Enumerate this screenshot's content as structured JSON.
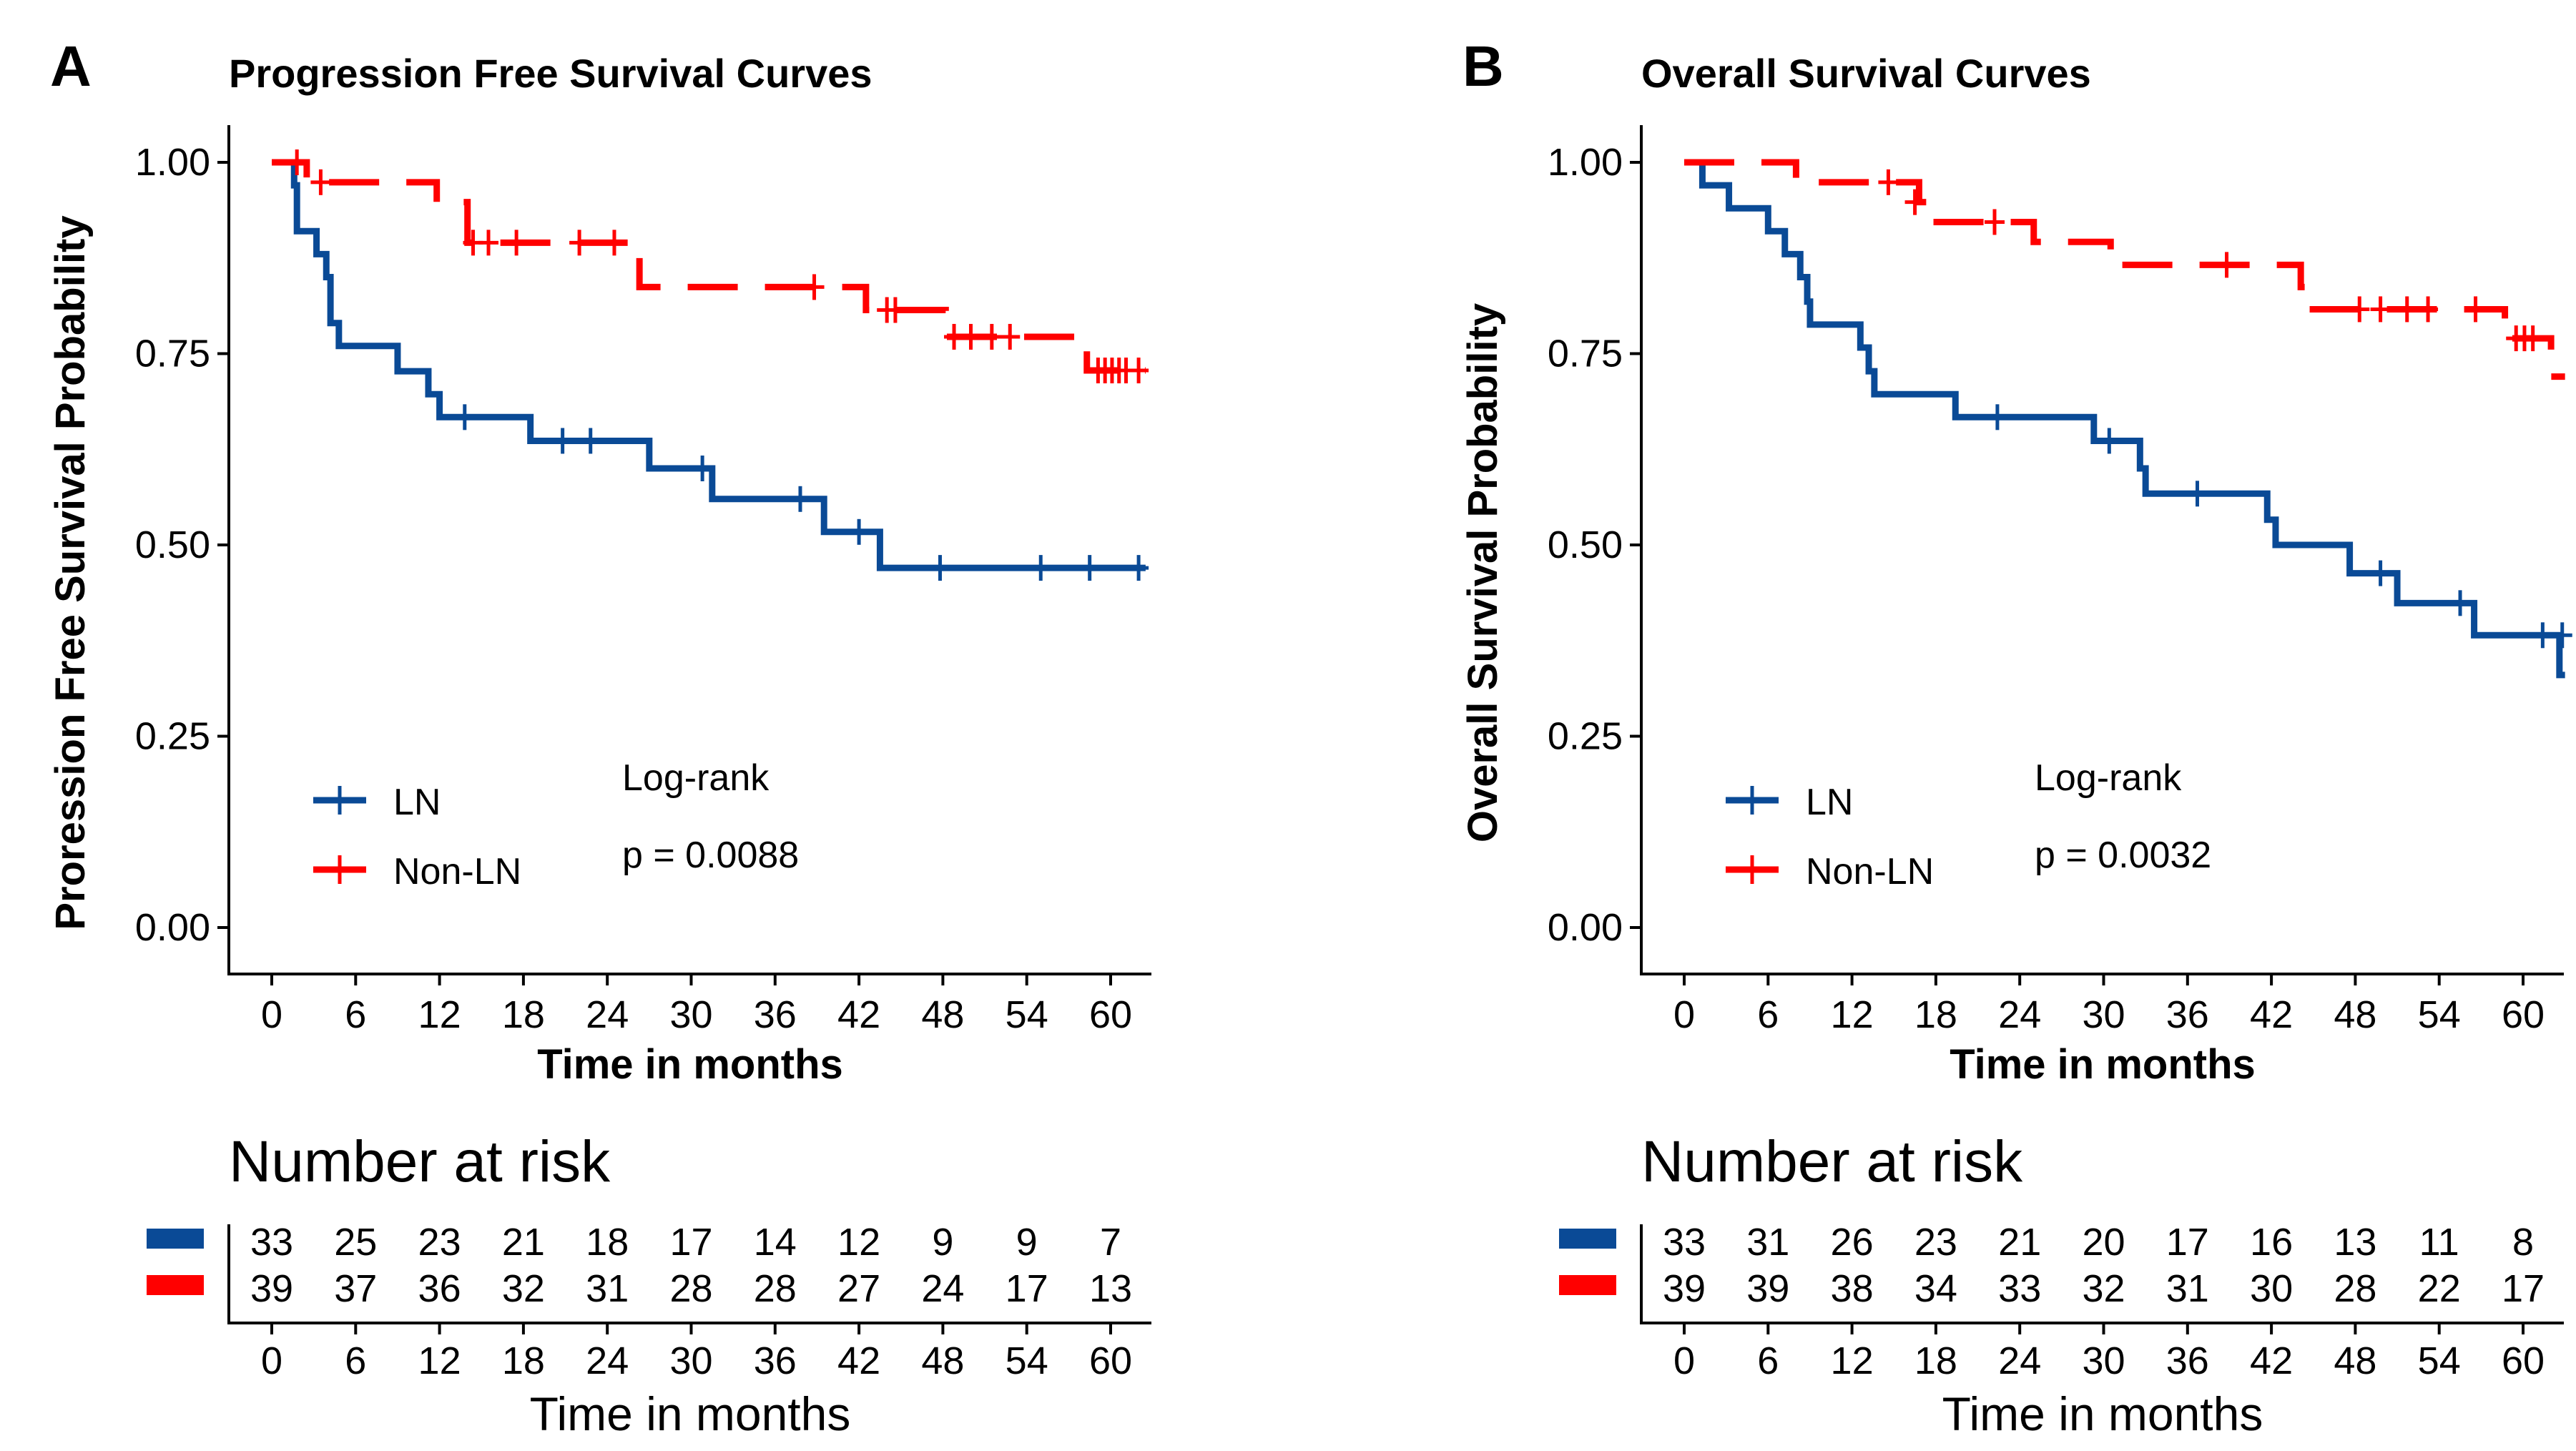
{
  "colors": {
    "ln": "#0a4a96",
    "non_ln": "#ff0000",
    "axis": "#000000"
  },
  "chart_data": [
    {
      "panel_label": "A",
      "type": "line",
      "subtype": "kaplan-meier",
      "title": "Progression Free Survival Curves",
      "xlabel": "Time in months",
      "ylabel": "Proression Free Survival Probability",
      "xlim": [
        -3,
        63
      ],
      "ylim": [
        0,
        1.05
      ],
      "x_ticks": [
        0,
        6,
        12,
        18,
        24,
        30,
        36,
        42,
        48,
        54,
        60
      ],
      "x_tick_labels": [
        "0",
        "6",
        "12",
        "18",
        "24",
        "30",
        "36",
        "42",
        "48",
        "54",
        "60"
      ],
      "y_ticks": [
        0,
        0.25,
        0.5,
        0.75,
        1.0
      ],
      "y_tick_labels": [
        "0.00",
        "0.25",
        "0.50",
        "0.75",
        "1.00"
      ],
      "legend_position": "bottom-left",
      "annotation": {
        "line1": "Log-rank",
        "line2": "p = 0.0088"
      },
      "series": [
        {
          "name": "LN",
          "color_key": "ln",
          "dash": false,
          "steps": [
            [
              0,
              1.0
            ],
            [
              1.6,
              0.97
            ],
            [
              1.8,
              0.91
            ],
            [
              3.2,
              0.88
            ],
            [
              3.9,
              0.85
            ],
            [
              4.2,
              0.79
            ],
            [
              4.8,
              0.76
            ],
            [
              9,
              0.727
            ],
            [
              11.2,
              0.697
            ],
            [
              12,
              0.667
            ],
            [
              18.5,
              0.636
            ],
            [
              27,
              0.6
            ],
            [
              31.5,
              0.56
            ],
            [
              39.5,
              0.517
            ],
            [
              43.5,
              0.47
            ],
            [
              62.5,
              0.47
            ]
          ],
          "censors": [
            [
              13.8,
              0.667
            ],
            [
              20.8,
              0.636
            ],
            [
              22.8,
              0.636
            ],
            [
              30.8,
              0.6
            ],
            [
              37.8,
              0.56
            ],
            [
              42,
              0.517
            ],
            [
              47.8,
              0.47
            ],
            [
              55,
              0.47
            ],
            [
              58.5,
              0.47
            ],
            [
              62,
              0.47
            ]
          ]
        },
        {
          "name": "Non-LN",
          "color_key": "non_ln",
          "dash": true,
          "steps": [
            [
              0,
              1.0
            ],
            [
              2.5,
              0.974
            ],
            [
              11.8,
              0.948
            ],
            [
              14,
              0.895
            ],
            [
              26.3,
              0.837
            ],
            [
              42.5,
              0.807
            ],
            [
              48.2,
              0.772
            ],
            [
              58.3,
              0.728
            ],
            [
              62.5,
              0.728
            ]
          ],
          "censors": [
            [
              1.8,
              1.0
            ],
            [
              3.5,
              0.974
            ],
            [
              14.4,
              0.895
            ],
            [
              15.5,
              0.895
            ],
            [
              17.5,
              0.895
            ],
            [
              22,
              0.895
            ],
            [
              24.5,
              0.895
            ],
            [
              38.8,
              0.837
            ],
            [
              44,
              0.807
            ],
            [
              44.6,
              0.807
            ],
            [
              48.8,
              0.772
            ],
            [
              50,
              0.772
            ],
            [
              51.5,
              0.772
            ],
            [
              52.8,
              0.772
            ],
            [
              59.1,
              0.728
            ],
            [
              59.6,
              0.728
            ],
            [
              60.1,
              0.728
            ],
            [
              60.6,
              0.728
            ],
            [
              61.1,
              0.728
            ],
            [
              62,
              0.728
            ]
          ]
        }
      ],
      "risk_table": {
        "title": "Number at risk",
        "times": [
          "0",
          "6",
          "12",
          "18",
          "24",
          "30",
          "36",
          "42",
          "48",
          "54",
          "60"
        ],
        "xlabel": "Time in months",
        "rows": [
          {
            "name": "LN",
            "color_key": "ln",
            "values": [
              "33",
              "25",
              "23",
              "21",
              "18",
              "17",
              "14",
              "12",
              "9",
              "9",
              "7"
            ]
          },
          {
            "name": "Non-LN",
            "color_key": "non_ln",
            "values": [
              "39",
              "37",
              "36",
              "32",
              "31",
              "28",
              "28",
              "27",
              "24",
              "17",
              "13"
            ]
          }
        ]
      }
    },
    {
      "panel_label": "B",
      "type": "line",
      "subtype": "kaplan-meier",
      "title": "Overall Survival Curves",
      "xlabel": "Time in months",
      "ylabel": "Overall Survival Probability",
      "xlim": [
        -3,
        63
      ],
      "ylim": [
        0,
        1.05
      ],
      "x_ticks": [
        0,
        6,
        12,
        18,
        24,
        30,
        36,
        42,
        48,
        54,
        60
      ],
      "x_tick_labels": [
        "0",
        "6",
        "12",
        "18",
        "24",
        "30",
        "36",
        "42",
        "48",
        "54",
        "60"
      ],
      "y_ticks": [
        0,
        0.25,
        0.5,
        0.75,
        1.0
      ],
      "y_tick_labels": [
        "0.00",
        "0.25",
        "0.50",
        "0.75",
        "1.00"
      ],
      "legend_position": "bottom-left",
      "annotation": {
        "line1": "Log-rank",
        "line2": "p = 0.0032"
      },
      "series": [
        {
          "name": "LN",
          "color_key": "ln",
          "dash": false,
          "steps": [
            [
              0,
              1.0
            ],
            [
              1.3,
              0.97
            ],
            [
              3.2,
              0.94
            ],
            [
              6,
              0.91
            ],
            [
              7.2,
              0.88
            ],
            [
              8.3,
              0.85
            ],
            [
              8.8,
              0.818
            ],
            [
              9,
              0.788
            ],
            [
              12.6,
              0.758
            ],
            [
              13.2,
              0.727
            ],
            [
              13.6,
              0.697
            ],
            [
              19.4,
              0.667
            ],
            [
              29.3,
              0.636
            ],
            [
              32.6,
              0.6
            ],
            [
              33,
              0.567
            ],
            [
              41.7,
              0.533
            ],
            [
              42.3,
              0.5
            ],
            [
              47.6,
              0.463
            ],
            [
              51,
              0.424
            ],
            [
              56.5,
              0.382
            ],
            [
              62.6,
              0.33
            ],
            [
              63,
              0.33
            ]
          ],
          "censors": [
            [
              22.4,
              0.667
            ],
            [
              30.4,
              0.636
            ],
            [
              36.7,
              0.567
            ],
            [
              49.8,
              0.463
            ],
            [
              55.5,
              0.424
            ],
            [
              61.4,
              0.382
            ],
            [
              62.8,
              0.382
            ]
          ]
        },
        {
          "name": "Non-LN",
          "color_key": "non_ln",
          "dash": true,
          "steps": [
            [
              0,
              1.0
            ],
            [
              8,
              0.974
            ],
            [
              16.8,
              0.948
            ],
            [
              17.8,
              0.922
            ],
            [
              25,
              0.896
            ],
            [
              30.5,
              0.866
            ],
            [
              44.1,
              0.837
            ],
            [
              44.5,
              0.808
            ],
            [
              58.7,
              0.77
            ],
            [
              62,
              0.72
            ],
            [
              63,
              0.72
            ]
          ],
          "censors": [
            [
              14.6,
              0.974
            ],
            [
              16.5,
              0.948
            ],
            [
              22.2,
              0.922
            ],
            [
              38.8,
              0.866
            ],
            [
              48.3,
              0.808
            ],
            [
              49.8,
              0.808
            ],
            [
              51.7,
              0.808
            ],
            [
              53.2,
              0.808
            ],
            [
              56.6,
              0.808
            ],
            [
              59.5,
              0.77
            ],
            [
              60.1,
              0.77
            ],
            [
              60.7,
              0.77
            ]
          ]
        }
      ],
      "risk_table": {
        "title": "Number at risk",
        "times": [
          "0",
          "6",
          "12",
          "18",
          "24",
          "30",
          "36",
          "42",
          "48",
          "54",
          "60"
        ],
        "xlabel": "Time in months",
        "rows": [
          {
            "name": "LN",
            "color_key": "ln",
            "values": [
              "33",
              "31",
              "26",
              "23",
              "21",
              "20",
              "17",
              "16",
              "13",
              "11",
              "8"
            ]
          },
          {
            "name": "Non-LN",
            "color_key": "non_ln",
            "values": [
              "39",
              "39",
              "38",
              "34",
              "33",
              "32",
              "31",
              "30",
              "28",
              "22",
              "17"
            ]
          }
        ]
      }
    }
  ]
}
